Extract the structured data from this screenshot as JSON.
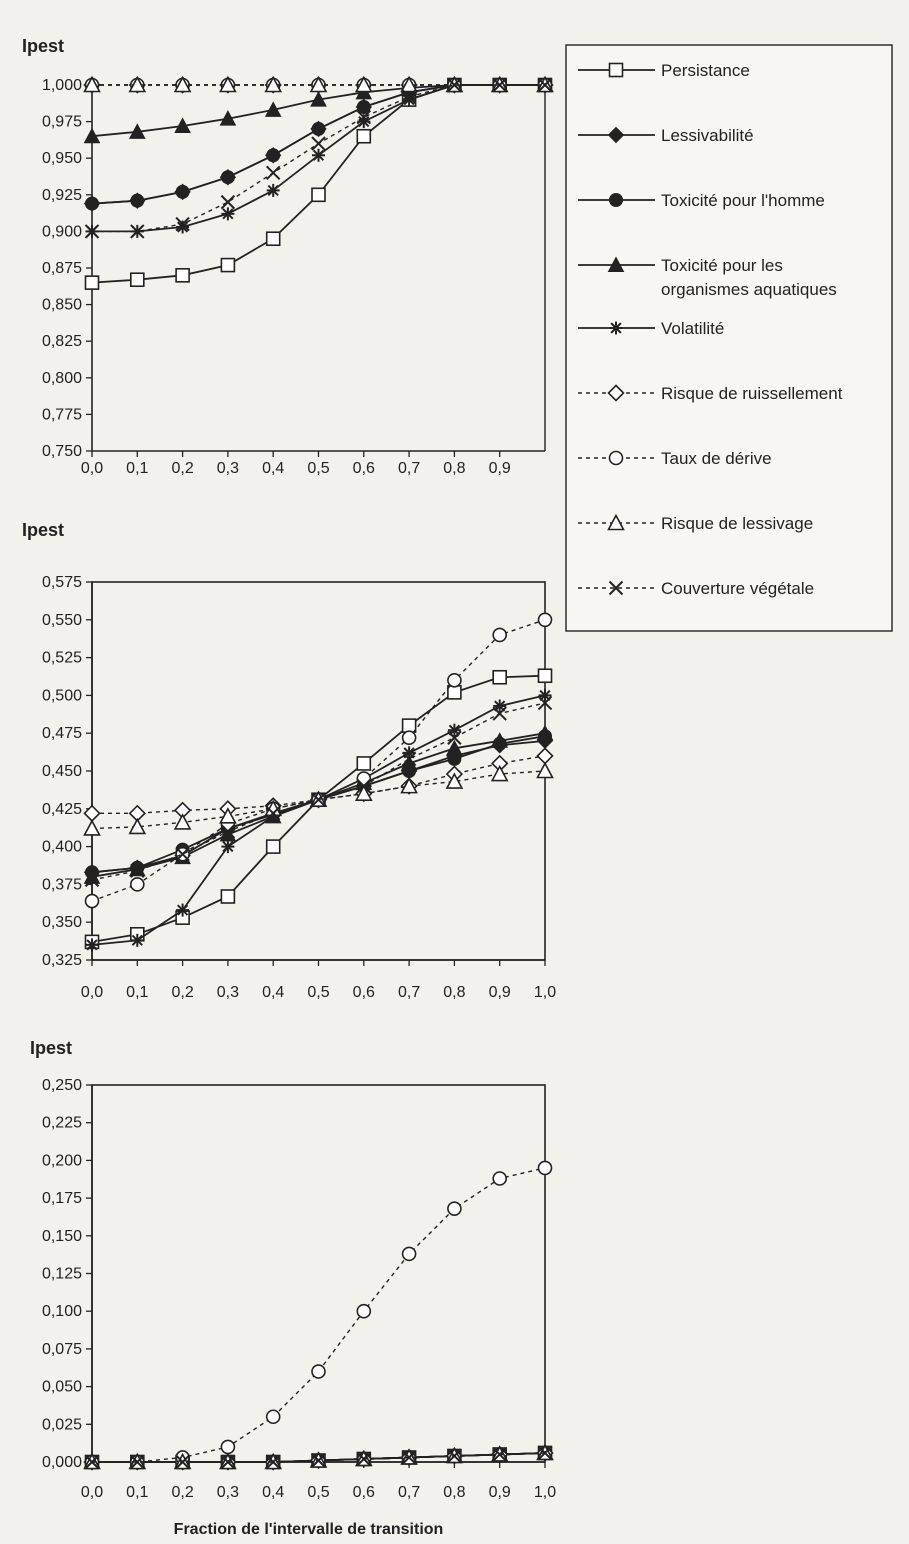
{
  "chart_data": [
    {
      "type": "line",
      "ylabel": "Ipest",
      "xlabel": "",
      "x_ticks": [
        "0,0",
        "0,1",
        "0,2",
        "0,3",
        "0,4",
        "0,5",
        "0,6",
        "0,7",
        "0,8",
        "0,9"
      ],
      "x": [
        0,
        0.1,
        0.2,
        0.3,
        0.4,
        0.5,
        0.6,
        0.7,
        0.8,
        0.9,
        1.0
      ],
      "xlim": [
        0,
        1.0
      ],
      "ylim": [
        0.75,
        1.0
      ],
      "y_ticks": [
        "0,750",
        "0,775",
        "0,800",
        "0,825",
        "0,850",
        "0,875",
        "0,900",
        "0,925",
        "0,950",
        "0,975",
        "1,000"
      ],
      "y_tick_values": [
        0.75,
        0.775,
        0.8,
        0.825,
        0.85,
        0.875,
        0.9,
        0.925,
        0.95,
        0.975,
        1.0
      ],
      "series": [
        {
          "name": "Persistance",
          "marker": "square-open",
          "dash": false,
          "values": [
            0.865,
            0.867,
            0.87,
            0.877,
            0.895,
            0.925,
            0.965,
            0.99,
            1.0,
            1.0,
            1.0
          ]
        },
        {
          "name": "Lessivabilité",
          "marker": "diamond",
          "dash": false,
          "values": [
            0.919,
            0.921,
            0.927,
            0.937,
            0.952,
            0.97,
            0.985,
            0.995,
            1.0,
            1.0,
            1.0
          ]
        },
        {
          "name": "Toxicité pour l'homme",
          "marker": "circle",
          "dash": false,
          "values": [
            0.919,
            0.921,
            0.927,
            0.937,
            0.952,
            0.97,
            0.985,
            0.995,
            1.0,
            1.0,
            1.0
          ]
        },
        {
          "name": "Toxicité pour les organismes aquatiques",
          "marker": "triangle",
          "dash": false,
          "values": [
            0.965,
            0.968,
            0.972,
            0.977,
            0.983,
            0.99,
            0.995,
            0.998,
            1.0,
            1.0,
            1.0
          ]
        },
        {
          "name": "Volatilité",
          "marker": "star",
          "dash": false,
          "values": [
            0.9,
            0.9,
            0.903,
            0.912,
            0.928,
            0.952,
            0.975,
            0.99,
            1.0,
            1.0,
            1.0
          ]
        },
        {
          "name": "Risque de ruissellement",
          "marker": "diamond-open",
          "dash": true,
          "values": [
            1.0,
            1.0,
            1.0,
            1.0,
            1.0,
            1.0,
            1.0,
            1.0,
            1.0,
            1.0,
            1.0
          ]
        },
        {
          "name": "Taux de dérive",
          "marker": "circle-open",
          "dash": true,
          "values": [
            1.0,
            1.0,
            1.0,
            1.0,
            1.0,
            1.0,
            1.0,
            1.0,
            1.0,
            1.0,
            1.0
          ]
        },
        {
          "name": "Risque de lessivage",
          "marker": "triangle-open",
          "dash": true,
          "values": [
            1.0,
            1.0,
            1.0,
            1.0,
            1.0,
            1.0,
            1.0,
            1.0,
            1.0,
            1.0,
            1.0
          ]
        },
        {
          "name": "Couverture végétale",
          "marker": "x",
          "dash": true,
          "values": [
            0.9,
            0.9,
            0.905,
            0.92,
            0.94,
            0.96,
            0.978,
            0.992,
            1.0,
            1.0,
            1.0
          ]
        }
      ]
    },
    {
      "type": "line",
      "ylabel": "Ipest",
      "xlabel": "",
      "x_ticks": [
        "0,0",
        "0,1",
        "0,2",
        "0,3",
        "0,4",
        "0,5",
        "0,6",
        "0,7",
        "0,8",
        "0,9",
        "1,0"
      ],
      "x": [
        0,
        0.1,
        0.2,
        0.3,
        0.4,
        0.5,
        0.6,
        0.7,
        0.8,
        0.9,
        1.0
      ],
      "xlim": [
        0,
        1.0
      ],
      "ylim": [
        0.325,
        0.575
      ],
      "y_ticks": [
        "0,325",
        "0,350",
        "0,375",
        "0,400",
        "0,425",
        "0,450",
        "0,475",
        "0,500",
        "0,525",
        "0,550",
        "0,575"
      ],
      "y_tick_values": [
        0.325,
        0.35,
        0.375,
        0.4,
        0.425,
        0.45,
        0.475,
        0.5,
        0.525,
        0.55,
        0.575
      ],
      "series": [
        {
          "name": "Persistance",
          "marker": "square-open",
          "dash": false,
          "values": [
            0.337,
            0.342,
            0.353,
            0.367,
            0.4,
            0.431,
            0.455,
            0.48,
            0.502,
            0.512,
            0.513
          ]
        },
        {
          "name": "Lessivabilité",
          "marker": "diamond",
          "dash": false,
          "values": [
            0.383,
            0.386,
            0.394,
            0.412,
            0.421,
            0.431,
            0.44,
            0.45,
            0.46,
            0.467,
            0.47
          ]
        },
        {
          "name": "Toxicité pour l'homme",
          "marker": "circle",
          "dash": false,
          "values": [
            0.383,
            0.386,
            0.398,
            0.412,
            0.422,
            0.431,
            0.44,
            0.45,
            0.458,
            0.468,
            0.473
          ]
        },
        {
          "name": "Toxicité pour les organismes aquatiques",
          "marker": "triangle",
          "dash": false,
          "values": [
            0.38,
            0.385,
            0.393,
            0.408,
            0.42,
            0.431,
            0.442,
            0.455,
            0.465,
            0.47,
            0.475
          ]
        },
        {
          "name": "Volatilité",
          "marker": "star",
          "dash": false,
          "values": [
            0.335,
            0.338,
            0.358,
            0.4,
            0.42,
            0.431,
            0.445,
            0.462,
            0.477,
            0.493,
            0.5
          ]
        },
        {
          "name": "Risque de ruissellement",
          "marker": "diamond-open",
          "dash": true,
          "values": [
            0.422,
            0.422,
            0.424,
            0.425,
            0.427,
            0.431,
            0.435,
            0.44,
            0.448,
            0.455,
            0.46
          ]
        },
        {
          "name": "Taux de dérive",
          "marker": "circle-open",
          "dash": true,
          "values": [
            0.364,
            0.375,
            0.395,
            0.415,
            0.425,
            0.431,
            0.445,
            0.472,
            0.51,
            0.54,
            0.55
          ]
        },
        {
          "name": "Risque de lessivage",
          "marker": "triangle-open",
          "dash": true,
          "values": [
            0.412,
            0.413,
            0.416,
            0.42,
            0.425,
            0.431,
            0.435,
            0.44,
            0.443,
            0.448,
            0.45
          ]
        },
        {
          "name": "Couverture végétale",
          "marker": "x",
          "dash": true,
          "values": [
            0.378,
            0.384,
            0.395,
            0.41,
            0.422,
            0.431,
            0.44,
            0.458,
            0.472,
            0.488,
            0.495
          ]
        }
      ]
    },
    {
      "type": "line",
      "ylabel": "Ipest",
      "xlabel": "Fraction de l'intervalle de transition",
      "x_ticks": [
        "0,0",
        "0,1",
        "0,2",
        "0,3",
        "0,4",
        "0,5",
        "0,6",
        "0,7",
        "0,8",
        "0,9",
        "1,0"
      ],
      "x": [
        0,
        0.1,
        0.2,
        0.3,
        0.4,
        0.5,
        0.6,
        0.7,
        0.8,
        0.9,
        1.0
      ],
      "xlim": [
        0,
        1.0
      ],
      "ylim": [
        0.0,
        0.25
      ],
      "y_ticks": [
        "0,000",
        "0,025",
        "0,050",
        "0,075",
        "0,100",
        "0,125",
        "0,150",
        "0,175",
        "0,200",
        "0,225",
        "0,250"
      ],
      "y_tick_values": [
        0,
        0.025,
        0.05,
        0.075,
        0.1,
        0.125,
        0.15,
        0.175,
        0.2,
        0.225,
        0.25
      ],
      "series": [
        {
          "name": "Persistance",
          "marker": "square-open",
          "dash": false,
          "values": [
            0,
            0,
            0,
            0,
            0,
            0.001,
            0.002,
            0.003,
            0.004,
            0.005,
            0.006
          ]
        },
        {
          "name": "Lessivabilité",
          "marker": "diamond",
          "dash": false,
          "values": [
            0,
            0,
            0,
            0,
            0,
            0.001,
            0.002,
            0.003,
            0.004,
            0.005,
            0.006
          ]
        },
        {
          "name": "Toxicité pour l'homme",
          "marker": "circle",
          "dash": false,
          "values": [
            0,
            0,
            0,
            0,
            0,
            0.001,
            0.002,
            0.003,
            0.004,
            0.005,
            0.006
          ]
        },
        {
          "name": "Toxicité pour les organismes aquatiques",
          "marker": "triangle",
          "dash": false,
          "values": [
            0,
            0,
            0,
            0,
            0,
            0.001,
            0.002,
            0.003,
            0.004,
            0.005,
            0.006
          ]
        },
        {
          "name": "Volatilité",
          "marker": "star",
          "dash": false,
          "values": [
            0,
            0,
            0,
            0,
            0,
            0.001,
            0.002,
            0.003,
            0.004,
            0.005,
            0.006
          ]
        },
        {
          "name": "Risque de ruissellement",
          "marker": "diamond-open",
          "dash": true,
          "values": [
            0,
            0,
            0,
            0,
            0,
            0.001,
            0.002,
            0.003,
            0.004,
            0.005,
            0.006
          ]
        },
        {
          "name": "Taux de dérive",
          "marker": "circle-open",
          "dash": true,
          "values": [
            0,
            0,
            0.003,
            0.01,
            0.03,
            0.06,
            0.1,
            0.138,
            0.168,
            0.188,
            0.195
          ]
        },
        {
          "name": "Risque de lessivage",
          "marker": "triangle-open",
          "dash": true,
          "values": [
            0,
            0,
            0,
            0,
            0,
            0.001,
            0.002,
            0.003,
            0.004,
            0.005,
            0.006
          ]
        },
        {
          "name": "Couverture végétale",
          "marker": "x",
          "dash": true,
          "values": [
            0,
            0,
            0,
            0,
            0,
            0.001,
            0.002,
            0.003,
            0.004,
            0.005,
            0.006
          ]
        }
      ]
    }
  ],
  "legend": {
    "entries": [
      {
        "label": "Persistance",
        "marker": "square-open",
        "dash": false
      },
      {
        "label": "Lessivabilité",
        "marker": "diamond",
        "dash": false
      },
      {
        "label": "Toxicité pour l'homme",
        "marker": "circle",
        "dash": false
      },
      {
        "label": "Toxicité pour les",
        "label2": "organismes aquatiques",
        "marker": "triangle",
        "dash": false
      },
      {
        "label": "Volatilité",
        "marker": "star",
        "dash": false
      },
      {
        "label": "Risque de ruissellement",
        "marker": "diamond-open",
        "dash": true
      },
      {
        "label": "Taux de dérive",
        "marker": "circle-open",
        "dash": true
      },
      {
        "label": "Risque de lessivage",
        "marker": "triangle-open",
        "dash": true
      },
      {
        "label": "Couverture végétale",
        "marker": "x",
        "dash": true
      }
    ]
  },
  "colors": {
    "ink": "#222222",
    "paper": "#f2f1ec"
  }
}
